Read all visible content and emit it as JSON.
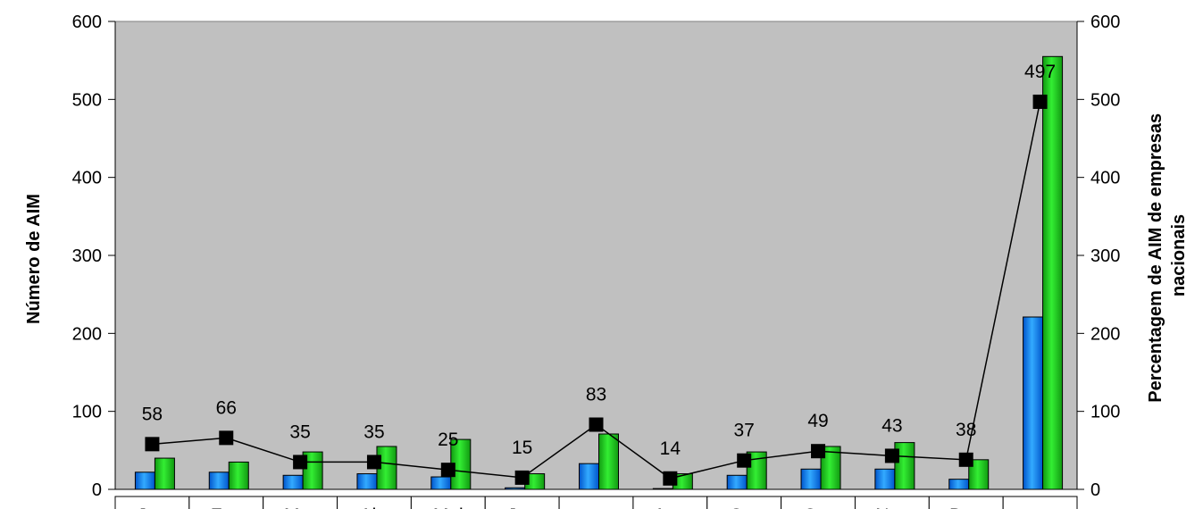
{
  "chart_data": {
    "type": "bar",
    "categories": [
      "Jan",
      "Fev",
      "Mar",
      "Abr",
      "Mai",
      "Jun",
      "",
      "Ago",
      "Set",
      "Out",
      "Nov",
      "Dez",
      ""
    ],
    "series": [
      {
        "type": "bar",
        "color": "#1f8fff",
        "values": [
          22,
          22,
          18,
          20,
          16,
          2,
          33,
          1,
          18,
          26,
          26,
          13,
          221
        ]
      },
      {
        "type": "bar",
        "color": "#22cc22",
        "values": [
          40,
          35,
          48,
          55,
          64,
          20,
          71,
          20,
          48,
          55,
          60,
          38,
          555
        ]
      },
      {
        "type": "line",
        "color": "#000000",
        "marker": "square",
        "values": [
          58,
          66,
          35,
          35,
          25,
          15,
          83,
          14,
          37,
          49,
          43,
          38,
          497
        ],
        "labels": [
          "58",
          "66",
          "35",
          "35",
          "25",
          "15",
          "83",
          "14",
          "37",
          "49",
          "43",
          "38",
          "497"
        ]
      }
    ],
    "ylabel": "Número de AIM",
    "y2label": "Percentagem de AIM de empresas nacionais",
    "y2label_lines": [
      "Percentagem de AIM de empresas",
      "nacionais"
    ],
    "ylim": [
      0,
      600
    ],
    "y2lim": [
      0,
      600
    ],
    "yticks": [
      "0",
      "100",
      "200",
      "300",
      "400",
      "500",
      "600"
    ],
    "y2ticks": [
      "0",
      "100",
      "200",
      "300",
      "400",
      "500",
      "600"
    ],
    "plot_background": "#c0c0c0",
    "grid": false
  }
}
